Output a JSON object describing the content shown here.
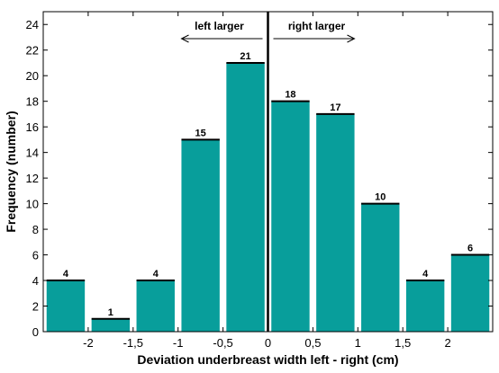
{
  "chart_data": {
    "type": "bar",
    "xlabel": "Deviation underbreast width left - right (cm)",
    "ylabel": "Frequency (number)",
    "ylim": [
      0,
      25
    ],
    "xlim": [
      -2.5,
      2.5
    ],
    "yticks": [
      0,
      2,
      4,
      6,
      8,
      10,
      12,
      14,
      16,
      18,
      20,
      22,
      24
    ],
    "xticks": [
      {
        "value": -2,
        "label": "-2"
      },
      {
        "value": -1.5,
        "label": "-1,5"
      },
      {
        "value": -1,
        "label": "-1"
      },
      {
        "value": -0.5,
        "label": "-0,5"
      },
      {
        "value": 0,
        "label": "0"
      },
      {
        "value": 0.5,
        "label": "0,5"
      },
      {
        "value": 1,
        "label": "1"
      },
      {
        "value": 1.5,
        "label": "1,5"
      },
      {
        "value": 2,
        "label": "2"
      }
    ],
    "bin_width": 0.5,
    "bins": [
      {
        "x": -2.25,
        "value": 4
      },
      {
        "x": -1.75,
        "value": 1
      },
      {
        "x": -1.25,
        "value": 4
      },
      {
        "x": -0.75,
        "value": 15
      },
      {
        "x": -0.25,
        "value": 21
      },
      {
        "x": 0.25,
        "value": 18
      },
      {
        "x": 0.75,
        "value": 17
      },
      {
        "x": 1.25,
        "value": 10
      },
      {
        "x": 1.75,
        "value": 4
      },
      {
        "x": 2.25,
        "value": 6
      }
    ],
    "bar_color": "#089e9b",
    "annotations": {
      "left": "left larger",
      "right": "right larger"
    },
    "grid": false
  }
}
